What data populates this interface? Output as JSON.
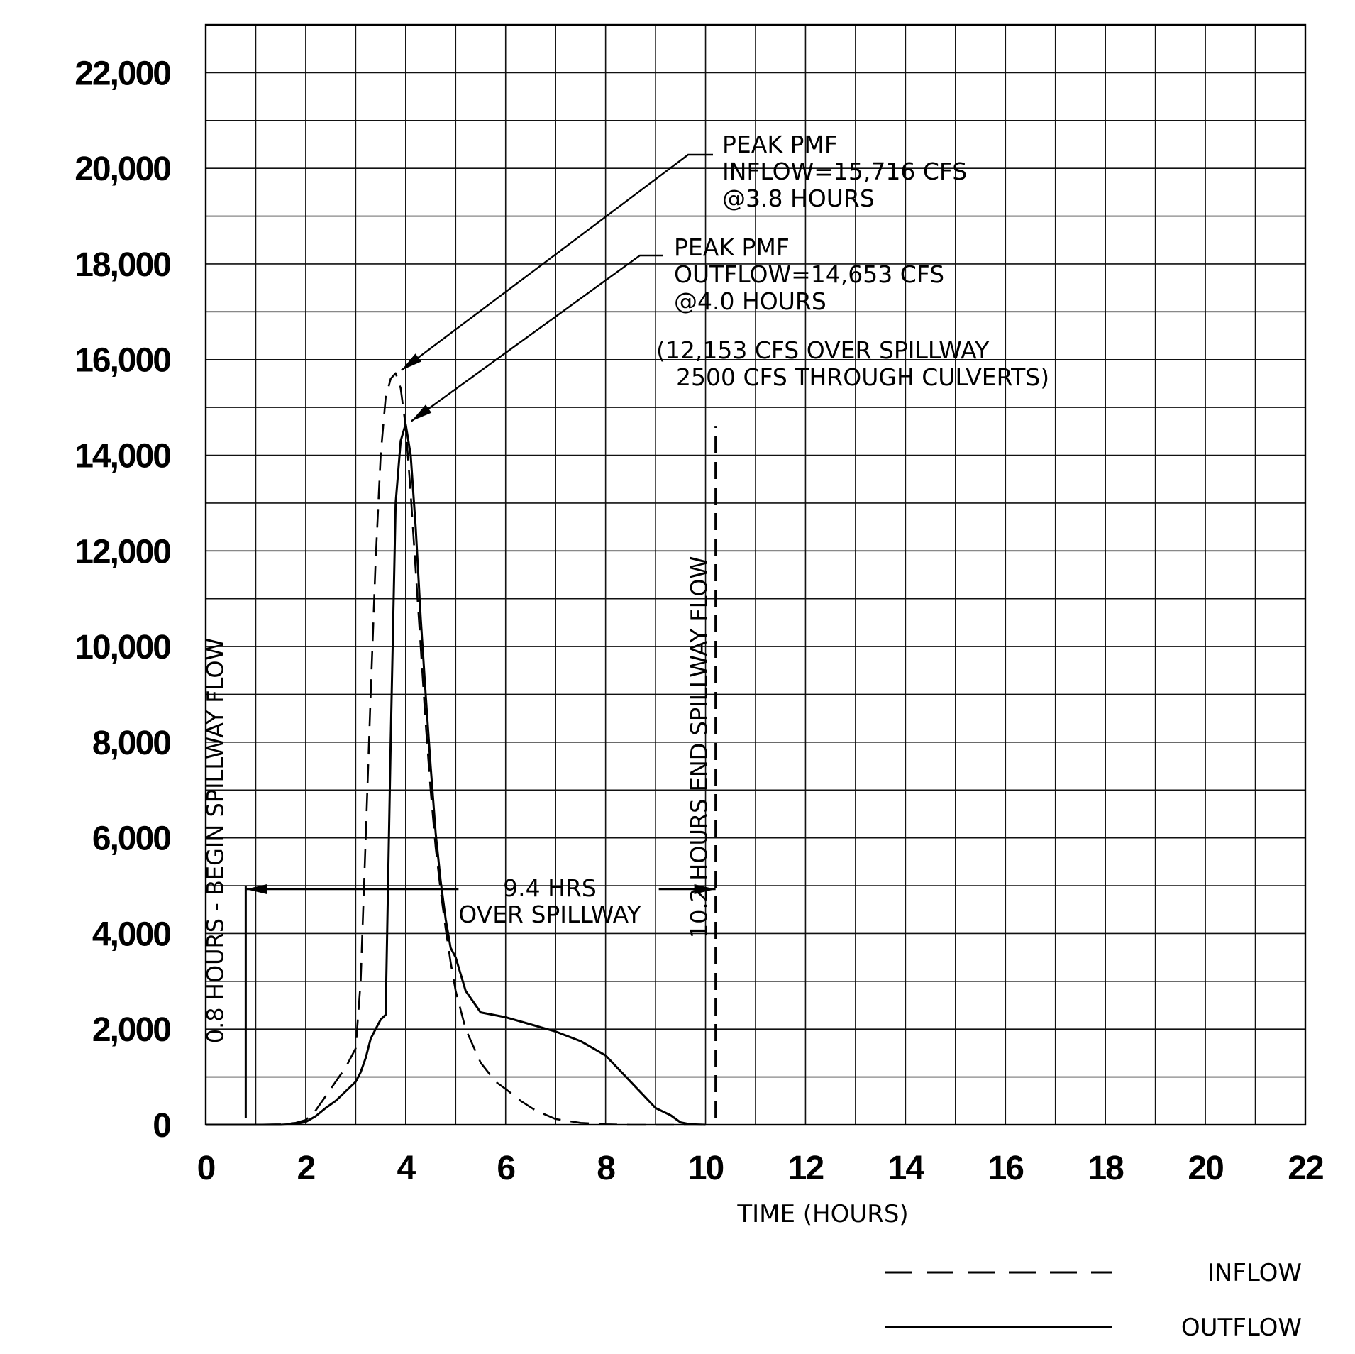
{
  "chart_data": {
    "type": "line",
    "title": "",
    "xlabel": "TIME (HOURS)",
    "ylabel": "",
    "xlim": [
      0,
      22
    ],
    "ylim": [
      0,
      23000
    ],
    "xticks": [
      0,
      2,
      4,
      6,
      8,
      10,
      12,
      14,
      16,
      18,
      20,
      22
    ],
    "xtick_labels": [
      "0",
      "2",
      "4",
      "6",
      "8",
      "10",
      "12",
      "14",
      "16",
      "18",
      "20",
      "22"
    ],
    "yticks": [
      0,
      2000,
      4000,
      6000,
      8000,
      10000,
      12000,
      14000,
      16000,
      18000,
      20000,
      22000
    ],
    "ytick_labels": [
      "0",
      "2,000",
      "4,000",
      "6,000",
      "8,000",
      "10,000",
      "12,000",
      "14,000",
      "16,000",
      "18,000",
      "20,000",
      "22,000"
    ],
    "grid": true,
    "legend_position": "bottom-right",
    "series": [
      {
        "name": "INFLOW",
        "style": "dashed",
        "x": [
          0,
          1.0,
          1.5,
          1.8,
          2.0,
          2.2,
          2.4,
          2.6,
          2.8,
          3.0,
          3.1,
          3.2,
          3.3,
          3.4,
          3.5,
          3.6,
          3.7,
          3.8,
          3.9,
          4.0,
          4.1,
          4.2,
          4.3,
          4.4,
          4.5,
          4.6,
          4.7,
          4.8,
          4.9,
          5.0,
          5.2,
          5.5,
          5.8,
          6.0,
          6.3,
          6.6,
          7.0,
          7.5,
          8.0,
          8.5,
          9.0,
          9.5,
          10.0
        ],
        "y": [
          0,
          0,
          10,
          40,
          100,
          300,
          600,
          900,
          1200,
          1600,
          3000,
          6000,
          9000,
          11800,
          14000,
          15200,
          15600,
          15716,
          15400,
          14600,
          13200,
          11600,
          10000,
          8400,
          7000,
          5800,
          4900,
          4100,
          3400,
          2800,
          2000,
          1300,
          900,
          750,
          500,
          300,
          120,
          40,
          10,
          0,
          0,
          0,
          0
        ]
      },
      {
        "name": "OUTFLOW",
        "style": "solid",
        "x": [
          0,
          1.0,
          1.5,
          1.8,
          2.0,
          2.2,
          2.4,
          2.6,
          2.8,
          3.0,
          3.1,
          3.2,
          3.3,
          3.4,
          3.5,
          3.6,
          3.7,
          3.8,
          3.9,
          4.0,
          4.1,
          4.2,
          4.3,
          4.4,
          4.5,
          4.6,
          4.7,
          4.8,
          4.9,
          5.0,
          5.2,
          5.5,
          6.0,
          6.5,
          7.0,
          7.5,
          8.0,
          8.5,
          9.0,
          9.3,
          9.5,
          9.7,
          10.0
        ],
        "y": [
          0,
          0,
          0,
          20,
          60,
          180,
          350,
          500,
          700,
          900,
          1100,
          1400,
          1800,
          2000,
          2200,
          2300,
          8000,
          13000,
          14300,
          14653,
          14000,
          12500,
          10600,
          9000,
          7500,
          6100,
          5100,
          4300,
          3700,
          3500,
          2800,
          2350,
          2250,
          2100,
          1950,
          1750,
          1450,
          900,
          350,
          200,
          50,
          10,
          0
        ]
      }
    ],
    "vertical_lines": [
      {
        "x": 0.8,
        "style": "solid",
        "y_range": [
          0,
          5000
        ],
        "label": "0.8 HOURS - BEGIN SPILLWAY FLOW"
      },
      {
        "x": 10.2,
        "style": "dashed",
        "y_range": [
          0,
          14600
        ],
        "label": "10.2 HOURS END SPILLWAY FLOW"
      }
    ],
    "interval": {
      "x_start": 0.8,
      "x_end": 10.2,
      "y": 4600,
      "lines": [
        "9.4 HRS",
        "OVER SPILLWAY"
      ]
    },
    "annotations": [
      {
        "lines": [
          "PEAK PMF",
          "INFLOW=15,716 CFS",
          "@3.8 HOURS"
        ],
        "points_to": {
          "x": 3.8,
          "y": 15716
        }
      },
      {
        "lines": [
          "PEAK PMF",
          "OUTFLOW=14,653 CFS",
          "@4.0 HOURS"
        ],
        "points_to": {
          "x": 4.0,
          "y": 14653
        }
      },
      {
        "lines": [
          "(12,153 CFS OVER SPILLWAY",
          "2500 CFS THROUGH CULVERTS)"
        ]
      }
    ]
  }
}
